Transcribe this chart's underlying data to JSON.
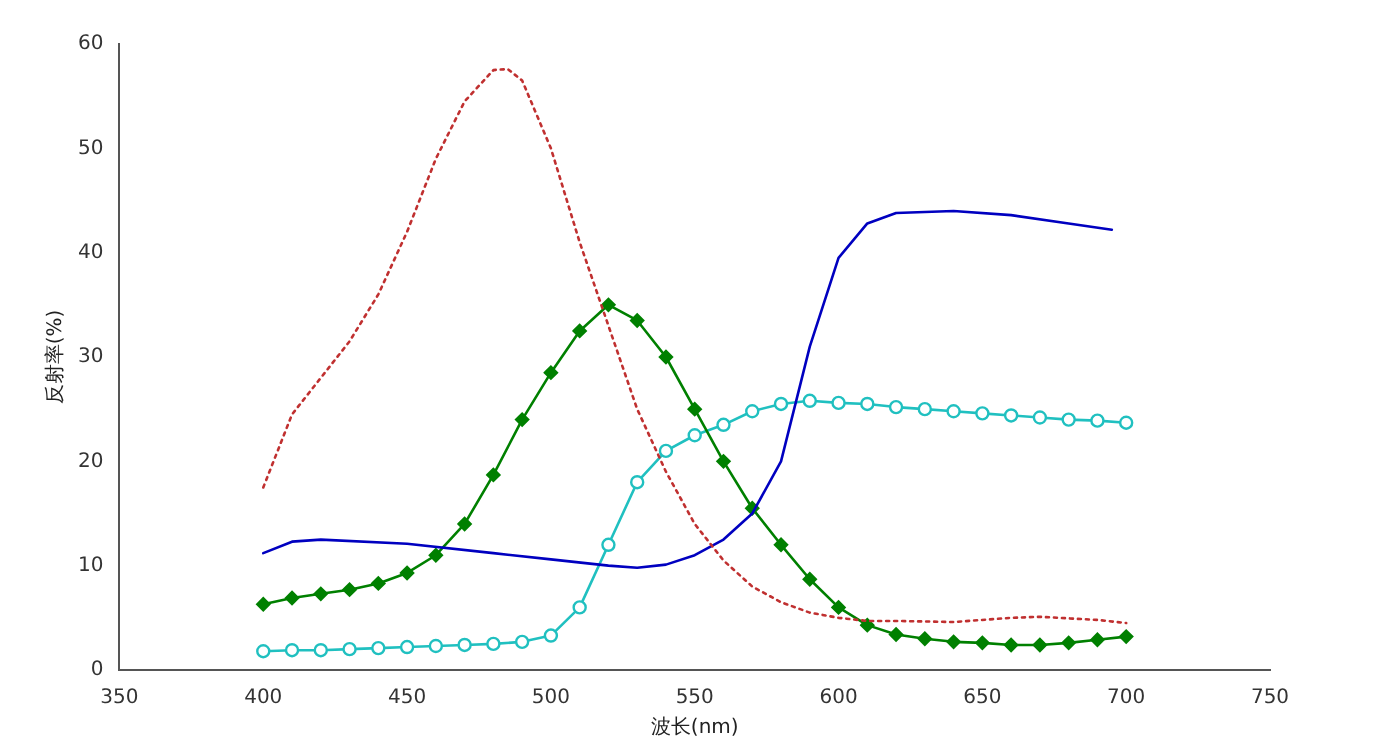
{
  "chart_data": {
    "type": "line",
    "xlabel": "波长(nm)",
    "ylabel": "反射率(%)",
    "xlim": [
      350,
      750
    ],
    "xticks": [
      350,
      400,
      450,
      500,
      550,
      600,
      650,
      700,
      750
    ],
    "ylim": [
      0,
      60
    ],
    "yticks": [
      0,
      10,
      20,
      30,
      40,
      50,
      60
    ],
    "grid": false,
    "legend": false,
    "series": [
      {
        "color": "#c03030",
        "line_style": "dotted",
        "marker": "none",
        "x": [
          400,
          405,
          410,
          420,
          430,
          440,
          450,
          460,
          470,
          480,
          485,
          490,
          500,
          510,
          520,
          530,
          540,
          550,
          560,
          570,
          580,
          590,
          600,
          610,
          620,
          640,
          660,
          670,
          690,
          700
        ],
        "values": [
          17.5,
          21,
          24.5,
          28,
          31.5,
          36,
          42,
          49,
          54.5,
          57.5,
          57.6,
          56.5,
          50,
          41,
          33,
          25,
          19,
          14,
          10.5,
          8,
          6.5,
          5.5,
          5,
          4.7,
          4.7,
          4.6,
          5,
          5.1,
          4.8,
          4.5
        ]
      },
      {
        "color": "#0000c0",
        "line_style": "solid",
        "marker": "none",
        "x": [
          400,
          410,
          420,
          450,
          480,
          500,
          520,
          530,
          540,
          550,
          560,
          570,
          580,
          590,
          600,
          610,
          620,
          640,
          660,
          680,
          695
        ],
        "values": [
          11.2,
          12.3,
          12.5,
          12.1,
          11.2,
          10.6,
          10,
          9.8,
          10.1,
          11,
          12.5,
          15,
          20,
          31,
          39.5,
          42.8,
          43.8,
          44,
          43.6,
          42.8,
          42.2
        ]
      },
      {
        "color": "#008000",
        "line_style": "solid",
        "marker": "diamond",
        "x": [
          400,
          410,
          420,
          430,
          440,
          450,
          460,
          470,
          480,
          490,
          500,
          510,
          520,
          530,
          540,
          550,
          560,
          570,
          580,
          590,
          600,
          610,
          620,
          630,
          640,
          650,
          660,
          670,
          680,
          690,
          700
        ],
        "values": [
          6.3,
          6.9,
          7.3,
          7.7,
          8.3,
          9.3,
          11,
          14,
          18.7,
          24,
          28.5,
          32.5,
          35,
          33.5,
          30,
          25,
          20,
          15.5,
          12,
          8.7,
          6,
          4.3,
          3.4,
          3,
          2.7,
          2.6,
          2.4,
          2.4,
          2.6,
          2.9,
          3.2
        ]
      },
      {
        "color": "#20c0c0",
        "line_style": "solid",
        "marker": "circle",
        "x": [
          400,
          410,
          420,
          430,
          440,
          450,
          460,
          470,
          480,
          490,
          500,
          510,
          520,
          530,
          540,
          550,
          560,
          570,
          580,
          590,
          600,
          610,
          620,
          630,
          640,
          650,
          660,
          670,
          680,
          690,
          700
        ],
        "values": [
          1.8,
          1.9,
          1.9,
          2,
          2.1,
          2.2,
          2.3,
          2.4,
          2.5,
          2.7,
          3.3,
          6,
          12,
          18,
          21,
          22.5,
          23.5,
          24.8,
          25.5,
          25.8,
          25.6,
          25.5,
          25.2,
          25,
          24.8,
          24.6,
          24.4,
          24.2,
          24,
          23.9,
          23.7
        ]
      }
    ]
  }
}
